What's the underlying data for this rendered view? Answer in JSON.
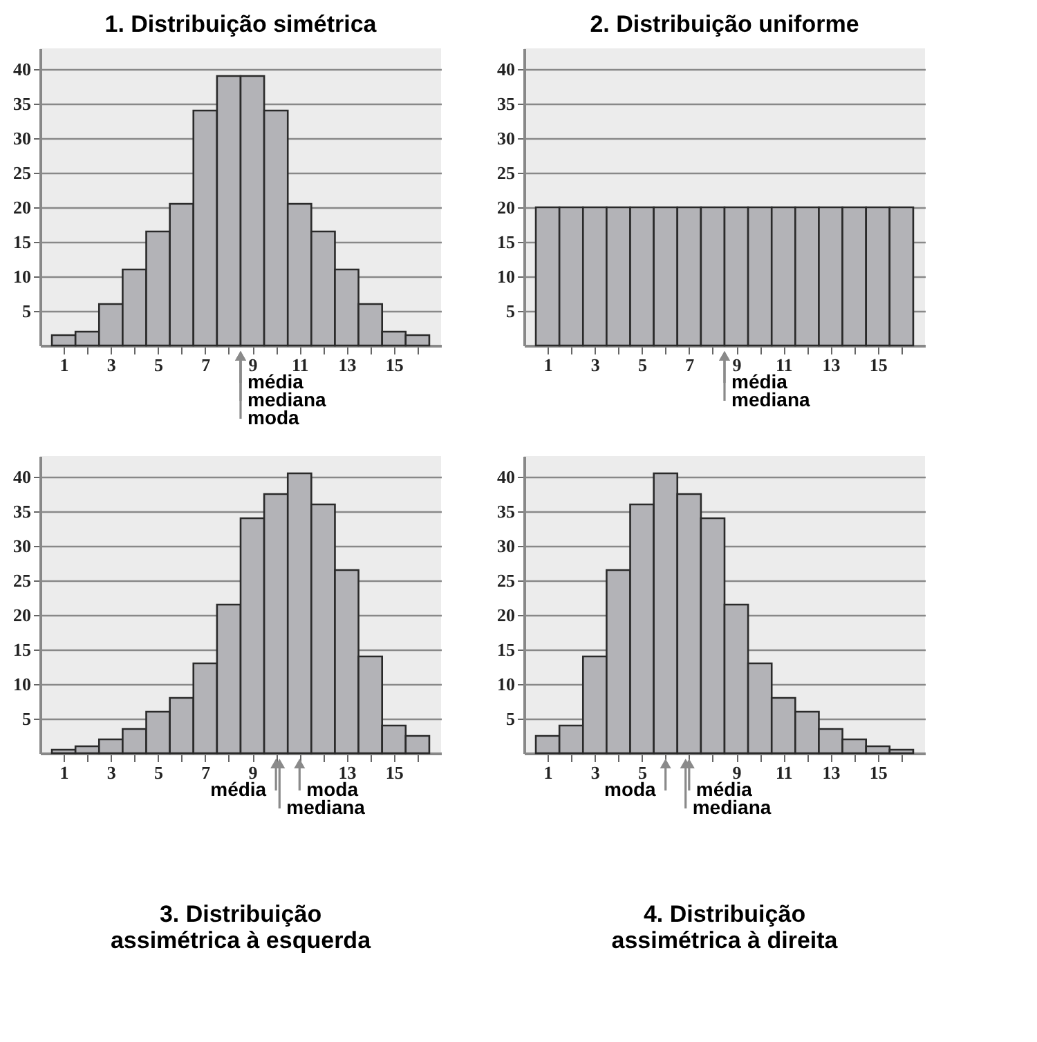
{
  "chart_data": [
    {
      "type": "histogram",
      "title": "1. Distribuição simétrica",
      "bins": [
        0.5,
        1.5,
        2.5,
        3.5,
        4.5,
        5.5,
        6.5,
        7.5,
        8.5,
        9.5,
        10.5,
        11.5,
        12.5,
        13.5,
        14.5,
        15.5,
        16.5
      ],
      "values": [
        1.5,
        2,
        6,
        11,
        16.5,
        20.5,
        34,
        39,
        39,
        34,
        20.5,
        16.5,
        11,
        6,
        2,
        1.5
      ],
      "color": "#b3b3b7",
      "xlim": [
        0,
        17
      ],
      "xticks": [
        1,
        {
          "value": 2,
          "label": null
        },
        3,
        {
          "value": 4,
          "label": null
        },
        5,
        {
          "value": 6,
          "label": null
        },
        7,
        {
          "value": 8,
          "label": null
        },
        9,
        {
          "value": 10,
          "label": null
        },
        11,
        {
          "value": 12,
          "label": null
        },
        13,
        {
          "value": 14,
          "label": null
        },
        15,
        {
          "value": 16,
          "label": null
        }
      ],
      "ylim": [
        0,
        43
      ],
      "yticks": [
        5,
        10,
        15,
        20,
        25,
        30,
        35,
        40
      ],
      "grid": "y",
      "annotations": [
        {
          "text": "média",
          "x": 8.5,
          "y": 0
        },
        {
          "text": "mediana",
          "x": 8.5,
          "y": 0
        },
        "moda"
      ]
    },
    {
      "type": "histogram",
      "title": "2. Distribuição uniforme",
      "bins": [
        0.5,
        1.5,
        2.5,
        3.5,
        4.5,
        5.5,
        6.5,
        7.5,
        8.5,
        9.5,
        10.5,
        11.5,
        12.5,
        13.5,
        14.5,
        15.5,
        16.5
      ],
      "values": [
        20,
        20,
        20,
        20,
        20,
        20,
        20,
        20,
        20,
        20,
        20,
        20,
        20,
        20,
        20,
        20
      ],
      "color": "#b3b3b7",
      "xlim": [
        0,
        17
      ],
      "xticks": [
        1,
        {
          "value": 2,
          "label": null
        },
        3,
        {
          "value": 4,
          "label": null
        },
        5,
        {
          "value": 6,
          "label": null
        },
        7,
        {
          "value": 8,
          "label": null
        },
        9,
        {
          "value": 10,
          "label": null
        },
        11,
        {
          "value": 12,
          "label": null
        },
        13,
        {
          "value": 14,
          "label": null
        },
        15,
        {
          "value": 16,
          "label": null
        }
      ],
      "ylim": [
        0,
        43
      ],
      "yticks": [
        5,
        10,
        15,
        20,
        25,
        30,
        35,
        40
      ],
      "grid": "y",
      "annotations": [
        {
          "text": "média",
          "x": 8.5,
          "y": 0
        },
        {
          "text": "mediana",
          "x": 8.5,
          "y": 0
        }
      ]
    },
    {
      "type": "histogram",
      "title": "3. Distribuição\nassimétrica à esquerda",
      "bins": [
        0.5,
        1.5,
        2.5,
        3.5,
        4.5,
        5.5,
        6.5,
        7.5,
        8.5,
        9.5,
        10.5,
        11.5,
        12.5,
        13.5,
        14.5,
        15.5,
        16.5
      ],
      "values": [
        0.5,
        1,
        2,
        3.5,
        6,
        8,
        13,
        21.5,
        34,
        37.5,
        40.5,
        36,
        26.5,
        14,
        4,
        2.5
      ],
      "color": "#b3b3b7",
      "xlim": [
        0,
        17
      ],
      "xticks": [
        1,
        {
          "value": 2,
          "label": null
        },
        3,
        {
          "value": 4,
          "label": null
        },
        5,
        {
          "value": 6,
          "label": null
        },
        7,
        {
          "value": 8,
          "label": null
        },
        9,
        {
          "value": 10,
          "label": null
        },
        {
          "value": 11,
          "label": null
        },
        {
          "value": 12,
          "label": null
        },
        13,
        {
          "value": 14,
          "label": null
        },
        15,
        {
          "value": 16,
          "label": null
        }
      ],
      "ylim": [
        0,
        43
      ],
      "yticks": [
        5,
        10,
        15,
        20,
        25,
        30,
        35,
        40
      ],
      "grid": "y",
      "annotations": [
        {
          "text": "média",
          "x": 10,
          "y": 0
        },
        {
          "text": "moda",
          "x": 11,
          "y": 0
        },
        {
          "text": "mediana",
          "x": 10.15,
          "y": 0
        }
      ]
    },
    {
      "type": "histogram",
      "title": "4. Distribuição\nassimétrica à direita",
      "bins": [
        0.5,
        1.5,
        2.5,
        3.5,
        4.5,
        5.5,
        6.5,
        7.5,
        8.5,
        9.5,
        10.5,
        11.5,
        12.5,
        13.5,
        14.5,
        15.5,
        16.5
      ],
      "values": [
        2.5,
        4,
        14,
        26.5,
        36,
        40.5,
        37.5,
        34,
        21.5,
        13,
        8,
        6,
        3.5,
        2,
        1,
        0.5
      ],
      "color": "#b3b3b7",
      "xlim": [
        0,
        17
      ],
      "xticks": [
        1,
        {
          "value": 2,
          "label": null
        },
        3,
        {
          "value": 4,
          "label": null
        },
        5,
        {
          "value": 6,
          "label": null
        },
        {
          "value": 7,
          "label": null
        },
        {
          "value": 8,
          "label": null
        },
        9,
        {
          "value": 10,
          "label": null
        },
        11,
        {
          "value": 12,
          "label": null
        },
        13,
        {
          "value": 14,
          "label": null
        },
        15,
        {
          "value": 16,
          "label": null
        }
      ],
      "ylim": [
        0,
        43
      ],
      "yticks": [
        5,
        10,
        15,
        20,
        25,
        30,
        35,
        40
      ],
      "grid": "y",
      "annotations": [
        {
          "text": "moda",
          "x": 6,
          "y": 0
        },
        {
          "text": "média",
          "x": 7,
          "y": 0
        },
        {
          "text": "mediana",
          "x": 6.85,
          "y": 0
        }
      ]
    }
  ]
}
